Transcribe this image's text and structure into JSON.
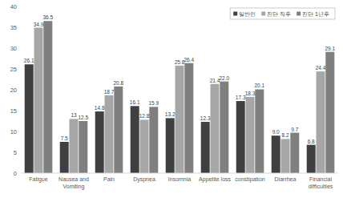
{
  "chart_data": {
    "type": "bar",
    "categories": [
      "Fatigue",
      "Nausea and Vomiting",
      "Pain",
      "Dyspnea",
      "Insomnia",
      "Appetite loss",
      "constipation",
      "Diarrhea",
      "Financial difficulties"
    ],
    "series": [
      {
        "name": "일반인",
        "color": "#404040",
        "values": [
          26.1,
          7.5,
          14.8,
          16.1,
          13.2,
          12.3,
          17.3,
          9.0,
          6.8
        ],
        "value_labels": [
          "26.1",
          "7.5",
          "14.8",
          "16.1",
          "13.2",
          "12.3",
          "17.3",
          "9.0",
          "6.8"
        ]
      },
      {
        "name": "진단 직후",
        "color": "#a6a6a6",
        "values": [
          34.9,
          13,
          18.7,
          12.8,
          25.8,
          21.4,
          18.3,
          8.2,
          24.4
        ],
        "value_labels": [
          "34.9",
          "13",
          "18.7",
          "12.8",
          "25.8",
          "21.4",
          "18.3",
          "8.2",
          "24.4"
        ]
      },
      {
        "name": "진단 1년후",
        "color": "#7f7f7f",
        "values": [
          36.5,
          12.5,
          20.8,
          15.9,
          26.4,
          22.0,
          20.1,
          9.7,
          29.1
        ],
        "value_labels": [
          "36.5",
          "12.5",
          "20.8",
          "15.9",
          "26.4",
          "22.0",
          "20.1",
          "9.7",
          "29.1"
        ]
      }
    ],
    "ylim": [
      0,
      40
    ],
    "yticks": [
      0,
      5,
      10,
      15,
      20,
      25,
      30,
      35,
      40
    ],
    "grid": false,
    "legend": "top-right",
    "data_labels": true
  }
}
